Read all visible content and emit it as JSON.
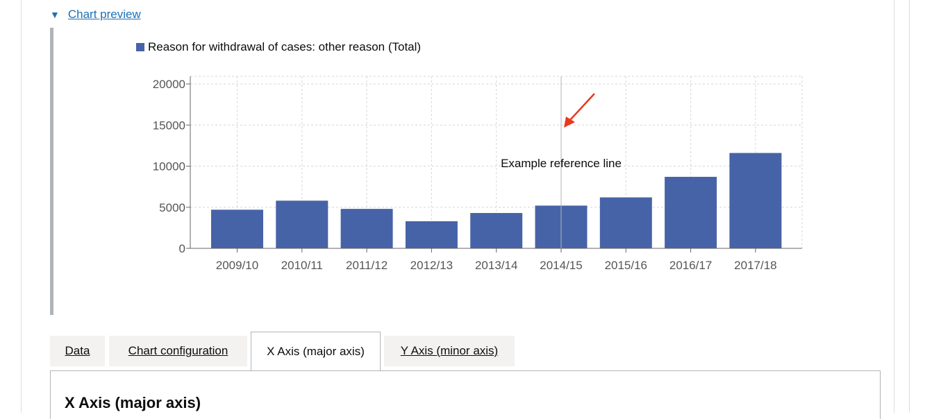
{
  "preview": {
    "toggle_label": "Chart preview"
  },
  "chart_data": {
    "type": "bar",
    "legend": "Reason for withdrawal of cases: other reason (Total)",
    "legend_position": "top",
    "categories": [
      "2009/10",
      "2010/11",
      "2011/12",
      "2012/13",
      "2013/14",
      "2014/15",
      "2015/16",
      "2016/17",
      "2017/18"
    ],
    "values": [
      4700,
      5800,
      4800,
      3300,
      4300,
      5200,
      6200,
      8700,
      11600
    ],
    "ylim": [
      0,
      20000
    ],
    "yticks": [
      0,
      5000,
      10000,
      15000,
      20000
    ],
    "grid": true,
    "color": "#4763a7",
    "reference_line": {
      "category": "2014/15",
      "label": "Example reference line"
    }
  },
  "tabs": [
    {
      "label": "Data"
    },
    {
      "label": "Chart configuration"
    },
    {
      "label": "X Axis (major axis)"
    },
    {
      "label": "Y Axis (minor axis)"
    }
  ],
  "panel": {
    "title": "X Axis (major axis)"
  }
}
